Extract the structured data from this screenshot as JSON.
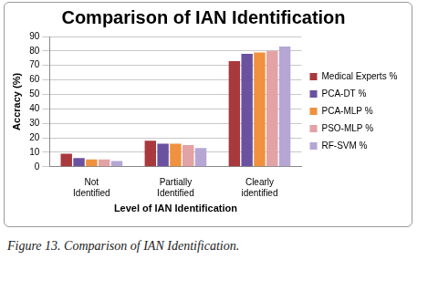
{
  "chart_data": {
    "type": "bar",
    "title": "Comparison of IAN Identification",
    "x_label": "Level of IAN Identification",
    "y_label": "Accracy (%)",
    "caption": "Figure 13. Comparison of IAN Identification.",
    "categories": [
      "Not Identified",
      "Partially Identified",
      "Clearly identified"
    ],
    "series": [
      {
        "name": "Medical Experts %",
        "color": "#a8393d",
        "values": [
          9,
          18,
          73
        ]
      },
      {
        "name": "PCA-DT %",
        "color": "#6b52a0",
        "values": [
          6,
          16,
          78
        ]
      },
      {
        "name": "PCA-MLP %",
        "color": "#f0913e",
        "values": [
          5,
          16,
          79
        ]
      },
      {
        "name": "PSO-MLP %",
        "color": "#e3a2a4",
        "values": [
          5,
          15,
          80
        ]
      },
      {
        "name": "RF-SVM %",
        "color": "#b5a6d3",
        "values": [
          4,
          13,
          83
        ]
      }
    ],
    "ylim": [
      0,
      90
    ],
    "yticks": [
      0,
      10,
      20,
      30,
      40,
      50,
      60,
      70,
      80,
      90
    ],
    "grid": true,
    "legend": "right"
  }
}
